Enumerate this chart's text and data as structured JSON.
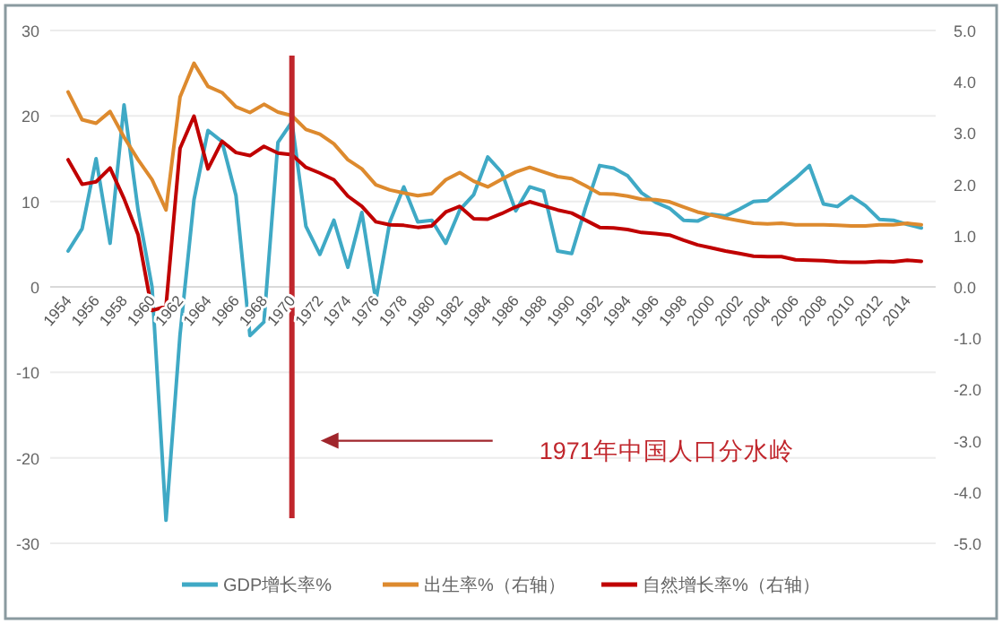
{
  "chart_data": {
    "type": "line",
    "categories": [
      "1954",
      null,
      "1956",
      null,
      "1958",
      null,
      "1960",
      null,
      "1962",
      null,
      "1964",
      null,
      "1966",
      null,
      "1968",
      null,
      "1970",
      null,
      "1972",
      null,
      "1974",
      null,
      "1976",
      null,
      "1978",
      null,
      "1980",
      null,
      "1982",
      null,
      "1984",
      null,
      "1986",
      null,
      "1988",
      null,
      "1990",
      null,
      "1992",
      null,
      "1994",
      null,
      "1996",
      null,
      "1998",
      null,
      "2000",
      null,
      "2002",
      null,
      "2004",
      null,
      "2006",
      null,
      "2008",
      null,
      "2010",
      null,
      "2012",
      null,
      "2014",
      null
    ],
    "series": [
      {
        "name": "GDP增长率%",
        "color": "#3fa9c5",
        "values": [
          4.2,
          6.8,
          15.0,
          5.1,
          21.3,
          9.0,
          0.0,
          -27.3,
          -5.6,
          10.2,
          18.3,
          17.0,
          10.7,
          -5.7,
          -4.1,
          16.9,
          19.3,
          7.1,
          3.8,
          7.8,
          2.3,
          8.7,
          -1.6,
          7.6,
          11.7,
          7.6,
          7.8,
          5.1,
          9.0,
          10.8,
          15.2,
          13.4,
          8.9,
          11.7,
          11.2,
          4.2,
          3.9,
          9.3,
          14.2,
          13.9,
          13.0,
          11.0,
          9.9,
          9.2,
          7.8,
          7.7,
          8.5,
          8.3,
          9.1,
          10.0,
          10.1,
          11.4,
          12.7,
          14.2,
          9.7,
          9.4,
          10.6,
          9.5,
          7.9,
          7.8,
          7.3,
          6.9
        ]
      },
      {
        "name": "出生率%（右轴）",
        "color": "#dd8a2e",
        "axis": "y2",
        "values": [
          3.8,
          3.26,
          3.19,
          3.42,
          2.92,
          2.48,
          2.09,
          1.5,
          3.7,
          4.36,
          3.91,
          3.79,
          3.51,
          3.4,
          3.56,
          3.41,
          3.34,
          3.07,
          2.98,
          2.79,
          2.48,
          2.3,
          1.99,
          1.89,
          1.83,
          1.78,
          1.82,
          2.09,
          2.23,
          2.06,
          1.95,
          2.1,
          2.24,
          2.33,
          2.24,
          2.15,
          2.11,
          1.97,
          1.82,
          1.81,
          1.77,
          1.71,
          1.7,
          1.66,
          1.56,
          1.46,
          1.4,
          1.34,
          1.29,
          1.24,
          1.23,
          1.24,
          1.21,
          1.21,
          1.21,
          1.2,
          1.19,
          1.19,
          1.21,
          1.21,
          1.24,
          1.21
        ]
      },
      {
        "name": "自然增长率%（右轴）",
        "color": "#c00000",
        "axis": "y2",
        "values": [
          2.48,
          2.0,
          2.05,
          2.32,
          1.72,
          1.02,
          -0.46,
          -0.38,
          2.7,
          3.33,
          2.3,
          2.84,
          2.62,
          2.56,
          2.74,
          2.61,
          2.58,
          2.33,
          2.22,
          2.09,
          1.77,
          1.57,
          1.27,
          1.21,
          1.2,
          1.16,
          1.19,
          1.46,
          1.57,
          1.33,
          1.32,
          1.43,
          1.56,
          1.66,
          1.58,
          1.5,
          1.44,
          1.3,
          1.16,
          1.15,
          1.12,
          1.06,
          1.04,
          1.01,
          0.91,
          0.82,
          0.76,
          0.7,
          0.65,
          0.6,
          0.59,
          0.59,
          0.53,
          0.52,
          0.51,
          0.49,
          0.48,
          0.48,
          0.5,
          0.49,
          0.52,
          0.5
        ]
      }
    ],
    "ylim": [
      -30,
      30
    ],
    "yticks": [
      30,
      20,
      10,
      0,
      -10,
      -20,
      -30
    ],
    "y2lim": [
      -5,
      5
    ],
    "y2ticks": [
      {
        "value": 5,
        "label": "5.0"
      },
      {
        "value": 4,
        "label": "4.0"
      },
      {
        "value": 3,
        "label": "3.0"
      },
      {
        "value": 2,
        "label": "2.0"
      },
      {
        "value": 1,
        "label": "1.0"
      },
      {
        "value": 0,
        "label": "0.0"
      },
      {
        "value": -1,
        "label": "-1.0"
      },
      {
        "value": -2,
        "label": "-2.0"
      },
      {
        "value": -3,
        "label": "-3.0"
      },
      {
        "value": -4,
        "label": "-4.0"
      },
      {
        "value": -5,
        "label": "-5.0"
      }
    ],
    "ref_lines": [
      {
        "axis": "x",
        "value": "1970",
        "label": "1971年中国人口分水岭",
        "color": "#c0262c"
      }
    ],
    "grid": "y",
    "legend": "bottom"
  }
}
